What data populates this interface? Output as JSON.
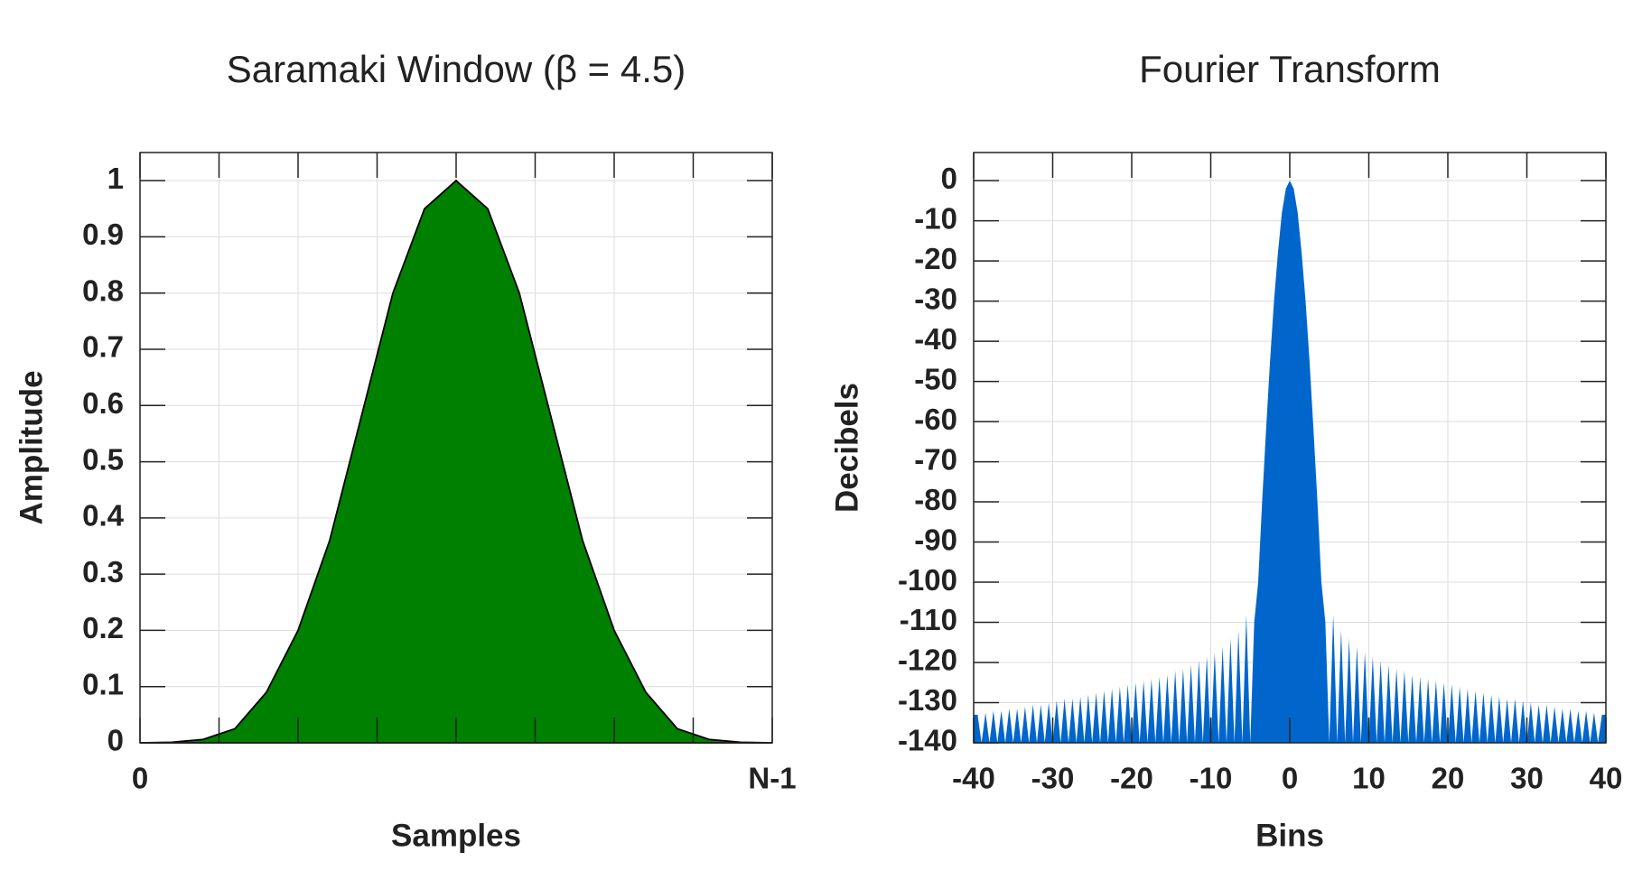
{
  "chart_data": [
    {
      "type": "area",
      "title": "Saramaki Window (β = 4.5)",
      "x_label": "Samples",
      "y_label": "Amplitude",
      "color": "#008000",
      "line_color": "#000000",
      "grid": true,
      "x": [
        0,
        0.05,
        0.1,
        0.15,
        0.2,
        0.25,
        0.3,
        0.35,
        0.4,
        0.45,
        0.5,
        0.55,
        0.6,
        0.65,
        0.7,
        0.75,
        0.8,
        0.85,
        0.9,
        0.95,
        1
      ],
      "values": [
        0,
        0.001,
        0.006,
        0.025,
        0.09,
        0.2,
        0.36,
        0.58,
        0.8,
        0.95,
        1,
        0.95,
        0.8,
        0.58,
        0.36,
        0.2,
        0.09,
        0.025,
        0.006,
        0.001,
        0
      ],
      "xlim": [
        0,
        1
      ],
      "xticks": [
        0,
        {
          "value": 0.125,
          "label": null
        },
        {
          "value": 0.25,
          "label": null
        },
        {
          "value": 0.375,
          "label": null
        },
        {
          "value": 0.5,
          "label": null
        },
        {
          "value": 0.625,
          "label": null
        },
        {
          "value": 0.75,
          "label": null
        },
        {
          "value": 0.875,
          "label": null
        },
        {
          "value": 1,
          "label": "N-1"
        }
      ],
      "ylim": [
        0,
        1.05
      ],
      "yticks": [
        0,
        0.1,
        0.2,
        0.3,
        0.4,
        0.5,
        0.6,
        0.7,
        0.8,
        0.9,
        1
      ]
    },
    {
      "type": "area",
      "title": "Fourier Transform",
      "x_label": "Bins",
      "y_label": "Decibels",
      "color": "#0066cc",
      "line_color": null,
      "grid": true,
      "x": [
        -40,
        -39.5,
        -39,
        -38.5,
        -38,
        -37.5,
        -37,
        -36.5,
        -36,
        -35.5,
        -35,
        -34.5,
        -34,
        -33.5,
        -33,
        -32.5,
        -32,
        -31.5,
        -31,
        -30.5,
        -30,
        -29.5,
        -29,
        -28.5,
        -28,
        -27.5,
        -27,
        -26.5,
        -26,
        -25.5,
        -25,
        -24.5,
        -24,
        -23.5,
        -23,
        -22.5,
        -22,
        -21.5,
        -21,
        -20.5,
        -20,
        -19.5,
        -19,
        -18.5,
        -18,
        -17.5,
        -17,
        -16.5,
        -16,
        -15.5,
        -15,
        -14.5,
        -14,
        -13.5,
        -13,
        -12.5,
        -12,
        -11.5,
        -11,
        -10.5,
        -10,
        -9.5,
        -9,
        -8.5,
        -8,
        -7.5,
        -7,
        -6.5,
        -6,
        -5.5,
        -5,
        -4.5,
        -4,
        -3.5,
        -3,
        -2.5,
        -2,
        -1.5,
        -1,
        -0.5,
        0,
        0.5,
        1,
        1.5,
        2,
        2.5,
        3,
        3.5,
        4,
        4.5,
        5,
        5.5,
        6,
        6.5,
        7,
        7.5,
        8,
        8.5,
        9,
        9.5,
        10,
        10.5,
        11,
        11.5,
        12,
        12.5,
        13,
        13.5,
        14,
        14.5,
        15,
        15.5,
        16,
        16.5,
        17,
        17.5,
        18,
        18.5,
        19,
        19.5,
        20,
        20.5,
        21,
        21.5,
        22,
        22.5,
        23,
        23.5,
        24,
        24.5,
        25,
        25.5,
        26,
        26.5,
        27,
        27.5,
        28,
        28.5,
        29,
        29.5,
        30,
        30.5,
        31,
        31.5,
        32,
        32.5,
        33,
        33.5,
        34,
        34.5,
        35,
        35.5,
        36,
        36.5,
        37,
        37.5,
        38,
        38.5,
        39,
        39.5,
        40
      ],
      "values": [
        -133,
        -133,
        -140,
        -132.5,
        -140,
        -132,
        -140,
        -132,
        -140,
        -131.5,
        -140,
        -131.5,
        -140,
        -131,
        -140,
        -130.5,
        -140,
        -130.5,
        -140,
        -130,
        -140,
        -129.5,
        -140,
        -129,
        -140,
        -129,
        -140,
        -128.5,
        -140,
        -128,
        -140,
        -127.5,
        -140,
        -127,
        -140,
        -126.5,
        -140,
        -126,
        -140,
        -125.5,
        -140,
        -125,
        -140,
        -124.5,
        -140,
        -124,
        -140,
        -123.5,
        -140,
        -123,
        -140,
        -122,
        -140,
        -121.5,
        -140,
        -120.5,
        -140,
        -119.5,
        -140,
        -118.5,
        -140,
        -117.5,
        -140,
        -116,
        -140,
        -114,
        -140,
        -112,
        -140,
        -108,
        -140,
        -110,
        -100,
        -80,
        -62,
        -45,
        -30,
        -18,
        -8,
        -2,
        0,
        -2,
        -8,
        -18,
        -30,
        -45,
        -62,
        -80,
        -100,
        -110,
        -140,
        -108,
        -140,
        -112,
        -140,
        -114,
        -140,
        -116,
        -140,
        -117.5,
        -140,
        -118.5,
        -140,
        -119.5,
        -140,
        -120.5,
        -140,
        -121.5,
        -140,
        -122,
        -140,
        -123,
        -140,
        -123.5,
        -140,
        -124,
        -140,
        -124.5,
        -140,
        -125,
        -140,
        -125.5,
        -140,
        -126,
        -140,
        -126.5,
        -140,
        -127,
        -140,
        -127.5,
        -140,
        -128,
        -140,
        -128.5,
        -140,
        -129,
        -140,
        -129,
        -140,
        -129.5,
        -140,
        -130,
        -140,
        -130.5,
        -140,
        -130.5,
        -140,
        -131,
        -140,
        -131.5,
        -140,
        -131.5,
        -140,
        -132,
        -140,
        -132,
        -140,
        -132.5,
        -140,
        -133,
        -133
      ],
      "xlim": [
        -40,
        40
      ],
      "xticks": [
        -40,
        -30,
        -20,
        -10,
        0,
        10,
        20,
        30,
        40
      ],
      "ylim": [
        -140,
        7
      ],
      "yticks": [
        0,
        -10,
        -20,
        -30,
        -40,
        -50,
        -60,
        -70,
        -80,
        -90,
        -100,
        -110,
        -120,
        -130,
        -140
      ]
    }
  ]
}
